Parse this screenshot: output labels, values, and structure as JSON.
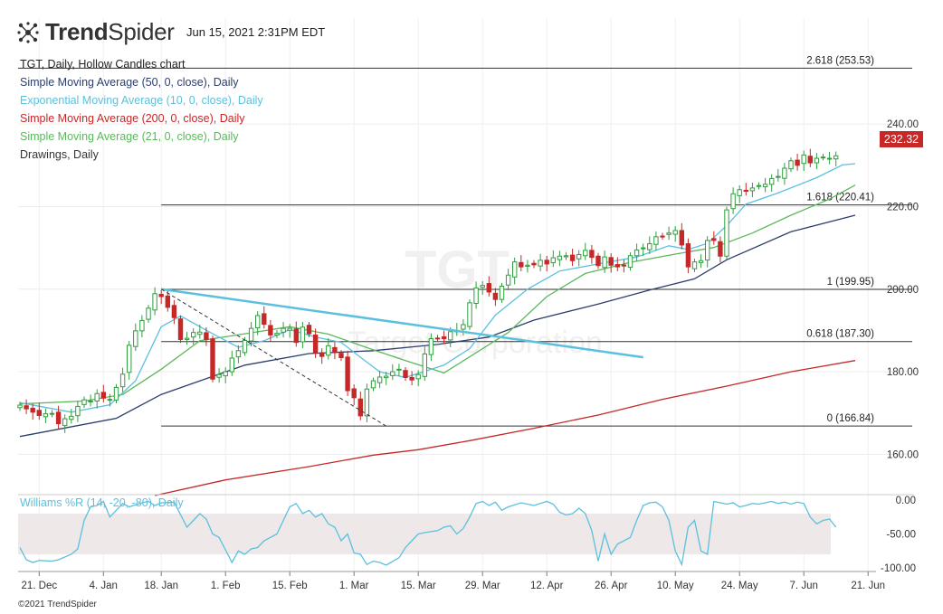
{
  "header": {
    "brand": "TrendSpider",
    "brand_bold": "Trend",
    "brand_light": "Spider",
    "timestamp": "Jun 15, 2021 2:31PM EDT"
  },
  "legend": {
    "title": "TGT, Daily, Hollow Candles chart",
    "items": [
      {
        "label": "Simple Moving Average (50, 0, close), Daily",
        "color": "#2c3e6b"
      },
      {
        "label": "Exponential Moving Average (10, 0, close), Daily",
        "color": "#5bc0de"
      },
      {
        "label": "Simple Moving Average (200, 0, close), Daily",
        "color": "#c62828"
      },
      {
        "label": "Simple Moving Average (21, 0, close), Daily",
        "color": "#5cb85c"
      },
      {
        "label": "Drawings, Daily",
        "color": "#333333"
      }
    ]
  },
  "watermark": {
    "symbol": "TGT",
    "company": "Target Corporation"
  },
  "last_price": "232.32",
  "footer": {
    "copyright": "©2021 TrendSpider"
  },
  "colors": {
    "up": "#2e9e3e",
    "down": "#c62828",
    "grid": "#e6e6e6"
  },
  "chart_data": {
    "type": "candlestick",
    "title": "TGT, Daily, Hollow Candles chart",
    "ylim": [
      150,
      258
    ],
    "y_ticks": [
      {
        "value": 240,
        "label": "240.00"
      },
      {
        "value": 220,
        "label": "220.00"
      },
      {
        "value": 200,
        "label": "200.00"
      },
      {
        "value": 180,
        "label": "180.00"
      },
      {
        "value": 160,
        "label": "160.00"
      }
    ],
    "x_ticks": [
      {
        "day": 3,
        "label": "21. Dec"
      },
      {
        "day": 13,
        "label": "4. Jan"
      },
      {
        "day": 22,
        "label": "18. Jan"
      },
      {
        "day": 32,
        "label": "1. Feb"
      },
      {
        "day": 42,
        "label": "15. Feb"
      },
      {
        "day": 52,
        "label": "1. Mar"
      },
      {
        "day": 62,
        "label": "15. Mar"
      },
      {
        "day": 72,
        "label": "29. Mar"
      },
      {
        "day": 82,
        "label": "12. Apr"
      },
      {
        "day": 92,
        "label": "26. Apr"
      },
      {
        "day": 102,
        "label": "10. May"
      },
      {
        "day": 112,
        "label": "24. May"
      },
      {
        "day": 122,
        "label": "7. Jun"
      },
      {
        "day": 132,
        "label": "21. Jun"
      }
    ],
    "closes": [
      171.9,
      171.0,
      170.2,
      169.4,
      169.8,
      169.9,
      167.4,
      168.6,
      169.2,
      171.6,
      173.2,
      172.9,
      174.7,
      173.6,
      173.3,
      176.2,
      179.4,
      186.4,
      189.9,
      192.4,
      195.4,
      198.9,
      198.2,
      195.6,
      193.1,
      187.8,
      188.1,
      189.5,
      189.6,
      187.8,
      178.2,
      179.3,
      180.0,
      183.3,
      185.1,
      187.6,
      190.5,
      193.6,
      191.5,
      188.9,
      189.3,
      190.5,
      190.5,
      187.1,
      190.8,
      189.2,
      184.6,
      183.7,
      186.3,
      184.6,
      183.4,
      175.4,
      173.7,
      169.3,
      175.8,
      177.8,
      178.7,
      178.9,
      180.0,
      180.6,
      178.6,
      178.0,
      179.3,
      184.3,
      188.0,
      188.0,
      188.0,
      189.7,
      190.0,
      191.4,
      196.7,
      200.3,
      200.9,
      199.3,
      197.5,
      200.7,
      203.4,
      206.6,
      205.4,
      205.8,
      205.9,
      207.0,
      206.1,
      207.6,
      208.0,
      208.1,
      206.9,
      208.4,
      209.4,
      207.7,
      205.7,
      207.8,
      205.8,
      205.4,
      205.6,
      208.1,
      209.5,
      210.0,
      211.0,
      212.7,
      212.8,
      213.6,
      214.2,
      210.7,
      205.4,
      206.6,
      206.9,
      211.8,
      211.8,
      208.0,
      219.2,
      223.1,
      224.1,
      223.7,
      224.5,
      225.1,
      225.4,
      226.8,
      227.3,
      229.3,
      231.1,
      230.0,
      232.5,
      230.6,
      231.7,
      232.0,
      231.7,
      232.3
    ],
    "series": [
      {
        "name": "SMA 50",
        "color": "#2c3e6b",
        "values": [
          [
            0,
            164.3
          ],
          [
            15,
            168.7
          ],
          [
            22,
            174.5
          ],
          [
            35,
            181.6
          ],
          [
            45,
            184.4
          ],
          [
            55,
            185.1
          ],
          [
            65,
            186.6
          ],
          [
            73,
            188.4
          ],
          [
            80,
            192.5
          ],
          [
            90,
            196.4
          ],
          [
            98,
            199.8
          ],
          [
            105,
            202.5
          ],
          [
            110,
            207.1
          ],
          [
            120,
            213.9
          ],
          [
            130,
            217.9
          ]
        ]
      },
      {
        "name": "SMA 21",
        "color": "#5cb85c",
        "values": [
          [
            0,
            172.2
          ],
          [
            10,
            172.9
          ],
          [
            16,
            174.5
          ],
          [
            22,
            180.6
          ],
          [
            28,
            187.5
          ],
          [
            35,
            189.2
          ],
          [
            42,
            190.9
          ],
          [
            48,
            189.1
          ],
          [
            55,
            185.3
          ],
          [
            60,
            182.7
          ],
          [
            66,
            179.7
          ],
          [
            70,
            183.6
          ],
          [
            76,
            189.5
          ],
          [
            82,
            198.2
          ],
          [
            88,
            203.8
          ],
          [
            95,
            206.5
          ],
          [
            102,
            208.5
          ],
          [
            108,
            210.1
          ],
          [
            114,
            213.6
          ],
          [
            120,
            217.9
          ],
          [
            126,
            221.8
          ],
          [
            130,
            225.2
          ]
        ]
      },
      {
        "name": "EMA 10",
        "color": "#5bc0de",
        "values": [
          [
            0,
            172.5
          ],
          [
            8,
            170.2
          ],
          [
            14,
            172.0
          ],
          [
            18,
            177.8
          ],
          [
            22,
            190.9
          ],
          [
            25,
            193.5
          ],
          [
            30,
            189.2
          ],
          [
            34,
            185.9
          ],
          [
            38,
            187.5
          ],
          [
            42,
            190.2
          ],
          [
            46,
            188.4
          ],
          [
            50,
            187.1
          ],
          [
            53,
            183.5
          ],
          [
            56,
            180.0
          ],
          [
            60,
            178.6
          ],
          [
            66,
            181.6
          ],
          [
            70,
            185.6
          ],
          [
            74,
            193.7
          ],
          [
            79,
            200.0
          ],
          [
            84,
            204.4
          ],
          [
            90,
            206.1
          ],
          [
            96,
            207.8
          ],
          [
            101,
            210.5
          ],
          [
            104,
            209.6
          ],
          [
            107,
            211.1
          ],
          [
            110,
            215.4
          ],
          [
            113,
            220.6
          ],
          [
            118,
            223.3
          ],
          [
            124,
            227.0
          ],
          [
            128,
            230.1
          ],
          [
            130,
            230.4
          ]
        ]
      },
      {
        "name": "SMA 200",
        "color": "#c62828",
        "values": [
          [
            21,
            150.0
          ],
          [
            32,
            153.8
          ],
          [
            45,
            157.0
          ],
          [
            55,
            159.8
          ],
          [
            62,
            161.1
          ],
          [
            70,
            163.3
          ],
          [
            80,
            166.3
          ],
          [
            90,
            169.5
          ],
          [
            100,
            173.3
          ],
          [
            110,
            176.5
          ],
          [
            120,
            180.0
          ],
          [
            130,
            182.7
          ]
        ]
      }
    ],
    "fib_levels": [
      {
        "ratio": "2.618",
        "value": 253.53,
        "label": "2.618 (253.53)"
      },
      {
        "ratio": "1.618",
        "value": 220.41,
        "label": "1.618 (220.41)"
      },
      {
        "ratio": "1",
        "value": 199.95,
        "label": "1 (199.95)"
      },
      {
        "ratio": "0.618",
        "value": 187.3,
        "label": "0.618 (187.30)"
      },
      {
        "ratio": "0",
        "value": 166.84,
        "label": "0 (166.84)"
      }
    ],
    "trendline": {
      "from": [
        22,
        200.0
      ],
      "to": [
        97,
        183.5
      ]
    },
    "dashed_line": {
      "from": [
        22,
        200.0
      ],
      "to": [
        57,
        166.84
      ]
    },
    "williams_r": {
      "label": "Williams %R (14, -20, -80), Daily",
      "y_ticks": [
        {
          "value": 0,
          "label": "0.00"
        },
        {
          "value": -50,
          "label": "-50.00"
        },
        {
          "value": -100,
          "label": "-100.00"
        }
      ],
      "band": [
        -20,
        -80
      ],
      "values": [
        [
          0,
          -70
        ],
        [
          1,
          -88
        ],
        [
          2,
          -92
        ],
        [
          3,
          -89
        ],
        [
          5,
          -90
        ],
        [
          6,
          -88
        ],
        [
          8,
          -80
        ],
        [
          9,
          -72
        ],
        [
          10,
          -30
        ],
        [
          11,
          -10
        ],
        [
          12,
          -8
        ],
        [
          13,
          -2
        ],
        [
          14,
          -25
        ],
        [
          15,
          -15
        ],
        [
          16,
          -5
        ],
        [
          17,
          -10
        ],
        [
          19,
          -4
        ],
        [
          20,
          -2
        ],
        [
          21,
          -8
        ],
        [
          22,
          -4
        ],
        [
          24,
          -3
        ],
        [
          26,
          -40
        ],
        [
          27,
          -30
        ],
        [
          28,
          -20
        ],
        [
          29,
          -28
        ],
        [
          30,
          -50
        ],
        [
          31,
          -55
        ],
        [
          33,
          -92
        ],
        [
          34,
          -75
        ],
        [
          35,
          -80
        ],
        [
          36,
          -72
        ],
        [
          37,
          -70
        ],
        [
          38,
          -60
        ],
        [
          39,
          -55
        ],
        [
          40,
          -50
        ],
        [
          41,
          -30
        ],
        [
          42,
          -10
        ],
        [
          43,
          -5
        ],
        [
          44,
          -20
        ],
        [
          45,
          -15
        ],
        [
          46,
          -25
        ],
        [
          47,
          -20
        ],
        [
          48,
          -35
        ],
        [
          49,
          -40
        ],
        [
          50,
          -60
        ],
        [
          51,
          -50
        ],
        [
          52,
          -78
        ],
        [
          53,
          -80
        ],
        [
          54,
          -95
        ],
        [
          55,
          -90
        ],
        [
          56,
          -92
        ],
        [
          57,
          -96
        ],
        [
          59,
          -85
        ],
        [
          60,
          -70
        ],
        [
          61,
          -60
        ],
        [
          62,
          -50
        ],
        [
          63,
          -48
        ],
        [
          65,
          -45
        ],
        [
          66,
          -40
        ],
        [
          67,
          -38
        ],
        [
          68,
          -50
        ],
        [
          69,
          -42
        ],
        [
          70,
          -25
        ],
        [
          71,
          -5
        ],
        [
          72,
          -2
        ],
        [
          73,
          -8
        ],
        [
          74,
          -3
        ],
        [
          75,
          -15
        ],
        [
          76,
          -10
        ],
        [
          78,
          -4
        ],
        [
          80,
          -8
        ],
        [
          82,
          -2
        ],
        [
          83,
          -6
        ],
        [
          84,
          -18
        ],
        [
          85,
          -22
        ],
        [
          86,
          -20
        ],
        [
          87,
          -12
        ],
        [
          88,
          -20
        ],
        [
          89,
          -45
        ],
        [
          90,
          -90
        ],
        [
          91,
          -50
        ],
        [
          92,
          -80
        ],
        [
          93,
          -65
        ],
        [
          94,
          -60
        ],
        [
          95,
          -55
        ],
        [
          96,
          -30
        ],
        [
          97,
          -8
        ],
        [
          98,
          -4
        ],
        [
          99,
          -3
        ],
        [
          100,
          -10
        ],
        [
          101,
          -30
        ],
        [
          102,
          -75
        ],
        [
          103,
          -95
        ],
        [
          104,
          -40
        ],
        [
          105,
          -30
        ],
        [
          106,
          -75
        ],
        [
          107,
          -80
        ],
        [
          108,
          -2
        ],
        [
          109,
          -4
        ],
        [
          110,
          -6
        ],
        [
          111,
          -4
        ],
        [
          112,
          -10
        ],
        [
          113,
          -8
        ],
        [
          114,
          -5
        ],
        [
          115,
          -6
        ],
        [
          116,
          -4
        ],
        [
          117,
          -2
        ],
        [
          118,
          -5
        ],
        [
          119,
          -3
        ],
        [
          120,
          -6
        ],
        [
          121,
          -3
        ],
        [
          122,
          -5
        ],
        [
          123,
          -25
        ],
        [
          124,
          -35
        ],
        [
          125,
          -30
        ],
        [
          126,
          -28
        ],
        [
          127,
          -40
        ]
      ]
    }
  }
}
